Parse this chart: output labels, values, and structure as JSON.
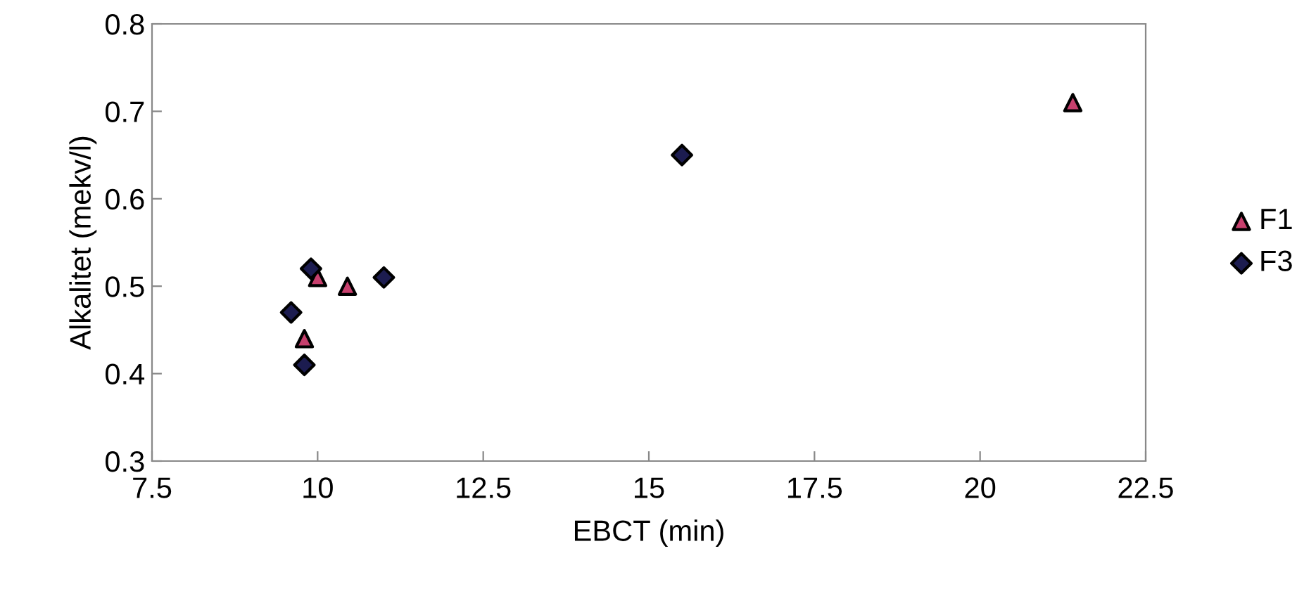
{
  "chart_data": {
    "type": "scatter",
    "xlabel": "EBCT (min)",
    "ylabel": "Alkalitet (mekv/l)",
    "xlim": [
      7.5,
      22.5
    ],
    "xticks": [
      7.5,
      10,
      12.5,
      15,
      17.5,
      20,
      22.5
    ],
    "ylim": [
      0.3,
      0.8
    ],
    "yticks": [
      0.3,
      0.4,
      0.5,
      0.6,
      0.7,
      0.8
    ],
    "grid": false,
    "legend": "right",
    "series": [
      {
        "name": "F1",
        "color": "#c8406e",
        "marker": "triangle",
        "x": [
          21.4,
          10.0,
          10.45,
          9.8
        ],
        "values": [
          0.71,
          0.51,
          0.5,
          0.44
        ]
      },
      {
        "name": "F3",
        "color": "#1c1c50",
        "marker": "diamond",
        "x": [
          15.5,
          9.9,
          11.0,
          9.6,
          9.8
        ],
        "values": [
          0.65,
          0.52,
          0.51,
          0.47,
          0.41
        ]
      }
    ]
  }
}
